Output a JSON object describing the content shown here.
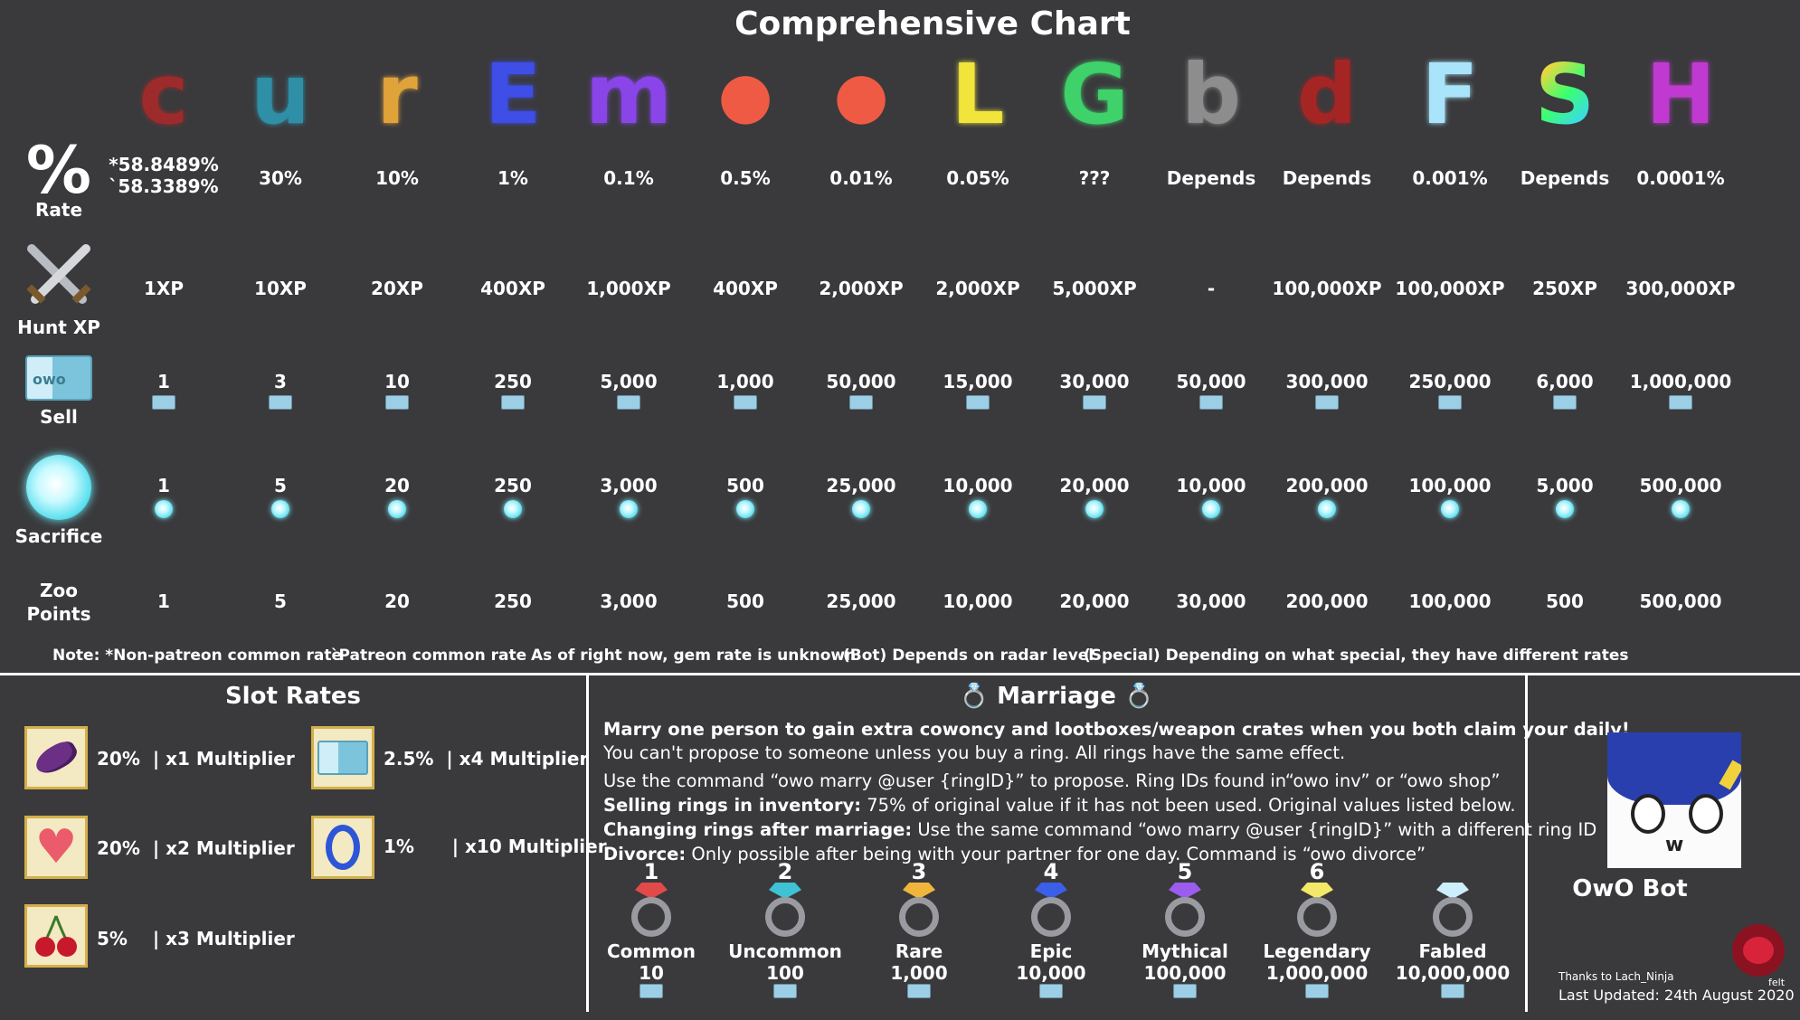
{
  "title": "Comprehensive Chart",
  "columns": [
    {
      "glyph": "c",
      "icon": "common-c-icon",
      "color": "#9e2b2b",
      "rate": "*58.8489%\n`58.3389%",
      "xp": "1XP",
      "sell": "1",
      "sacrifice": "1",
      "zoo": "1"
    },
    {
      "glyph": "u",
      "icon": "uncommon-u-icon",
      "color": "#2f8fa6",
      "rate": "30%",
      "xp": "10XP",
      "sell": "3",
      "sacrifice": "5",
      "zoo": "5"
    },
    {
      "glyph": "r",
      "icon": "rare-r-icon",
      "color": "#e0a33a",
      "rate": "10%",
      "xp": "20XP",
      "sell": "10",
      "sacrifice": "20",
      "zoo": "20"
    },
    {
      "glyph": "E",
      "icon": "epic-e-icon",
      "color": "#3e4ee6",
      "rate": "1%",
      "xp": "400XP",
      "sell": "250",
      "sacrifice": "250",
      "zoo": "250"
    },
    {
      "glyph": "m",
      "icon": "mythical-m-icon",
      "color": "#8a45e8",
      "rate": "0.1%",
      "xp": "1,000XP",
      "sell": "5,000",
      "sacrifice": "3,000",
      "zoo": "3,000"
    },
    {
      "glyph": "●",
      "icon": "patreon-p-icon",
      "color": "#ef5a45",
      "rate": "0.5%",
      "xp": "400XP",
      "sell": "1,000",
      "sacrifice": "500",
      "zoo": "500"
    },
    {
      "glyph": "●",
      "icon": "cpatreon-p-icon",
      "color": "#ef5a45",
      "rate": "0.01%",
      "xp": "2,000XP",
      "sell": "50,000",
      "sacrifice": "25,000",
      "zoo": "25,000"
    },
    {
      "glyph": "L",
      "icon": "legendary-l-icon",
      "color": "#f1e53c",
      "rate": "0.05%",
      "xp": "2,000XP",
      "sell": "15,000",
      "sacrifice": "10,000",
      "zoo": "10,000"
    },
    {
      "glyph": "G",
      "icon": "gem-g-icon",
      "color": "#3fd16a",
      "rate": "???",
      "xp": "5,000XP",
      "sell": "30,000",
      "sacrifice": "20,000",
      "zoo": "20,000"
    },
    {
      "glyph": "b",
      "icon": "bot-b-icon",
      "color": "#8d8d8d",
      "rate": "Depends",
      "xp": "-",
      "sell": "50,000",
      "sacrifice": "10,000",
      "zoo": "30,000"
    },
    {
      "glyph": "d",
      "icon": "distorted-d-icon",
      "color": "#a52525",
      "rate": "Depends",
      "xp": "100,000XP",
      "sell": "300,000",
      "sacrifice": "200,000",
      "zoo": "200,000"
    },
    {
      "glyph": "F",
      "icon": "fabled-f-icon",
      "color": "#a9e4fb",
      "rate": "0.001%",
      "xp": "100,000XP",
      "sell": "250,000",
      "sacrifice": "100,000",
      "zoo": "100,000"
    },
    {
      "glyph": "S",
      "icon": "special-s-icon",
      "color": "#ff3fa8",
      "rate": "Depends",
      "xp": "250XP",
      "sell": "6,000",
      "sacrifice": "5,000",
      "zoo": "500"
    },
    {
      "glyph": "H",
      "icon": "hidden-h-icon",
      "color": "#c03ad1",
      "rate": "0.0001%",
      "xp": "300,000XP",
      "sell": "1,000,000",
      "sacrifice": "500,000",
      "zoo": "500,000"
    }
  ],
  "rows": {
    "rate": {
      "symbol": "%",
      "label": "Rate"
    },
    "xp": {
      "label": "Hunt XP"
    },
    "sell": {
      "label": "Sell"
    },
    "sacrifice": {
      "label": "Sacrifice"
    },
    "zoo": {
      "label": "Zoo\nPoints"
    }
  },
  "notes": [
    "Note: *Non-patreon common rate",
    "`Patreon common rate",
    "As of right now, gem rate is unknown",
    "(Bot) Depends on radar level",
    "(Special) Depending on what special, they have different rates"
  ],
  "slots": {
    "title": "Slot Rates",
    "items": [
      {
        "icon": "eggplant-icon",
        "rate": "20%",
        "mult": "| x1 Multiplier"
      },
      {
        "icon": "heart-icon",
        "rate": "20%",
        "mult": "| x2 Multiplier"
      },
      {
        "icon": "cherry-icon",
        "rate": "5%",
        "mult": "| x3 Multiplier"
      },
      {
        "icon": "cowoncy-icon",
        "rate": "2.5%",
        "mult": "| x4 Multiplier"
      },
      {
        "icon": "o-ring-icon",
        "rate": "1%",
        "mult": "| x10 Multiplier"
      }
    ]
  },
  "marriage": {
    "title": "Marriage",
    "lines": [
      {
        "bold": "Marry one person to gain extra cowoncy and lootboxes/weapon crates when you both claim your daily!",
        "text": ""
      },
      {
        "bold": "",
        "text": "You can't propose to someone unless you buy a ring. All rings have the same effect."
      },
      {
        "bold": "",
        "text": "Use the command “owo marry @user {ringID}”  to propose. Ring IDs found in“owo inv” or “owo shop”"
      },
      {
        "bold": "Selling rings in inventory:",
        "text": " 75% of original value if it has not been used. Original values listed below."
      },
      {
        "bold": "Changing rings after marriage:",
        "text": " Use the same command “owo marry @user {ringID}” with a different ring ID"
      },
      {
        "bold": "Divorce:",
        "text": " Only possible after being with your partner for one day. Command is “owo divorce”"
      }
    ],
    "rings": [
      {
        "id": "1",
        "name": "Common",
        "price": "10",
        "gem": "#e24a4a"
      },
      {
        "id": "2",
        "name": "Uncommon",
        "price": "100",
        "gem": "#3ec3d6"
      },
      {
        "id": "3",
        "name": "Rare",
        "price": "1,000",
        "gem": "#f0b63c"
      },
      {
        "id": "4",
        "name": "Epic",
        "price": "10,000",
        "gem": "#3b5fe8"
      },
      {
        "id": "5",
        "name": "Mythical",
        "price": "100,000",
        "gem": "#9d5cf0"
      },
      {
        "id": "6",
        "name": "Legendary",
        "price": "1,000,000",
        "gem": "#f3e868"
      },
      {
        "id": "",
        "name": "Fabled",
        "price": "10,000,000",
        "gem": "#cdeefc"
      }
    ]
  },
  "bot": {
    "name": "OwO Bot",
    "thanks": "Thanks to Lach_Ninja",
    "updated": "Last Updated: 24th August 2020",
    "signature": "felt"
  }
}
